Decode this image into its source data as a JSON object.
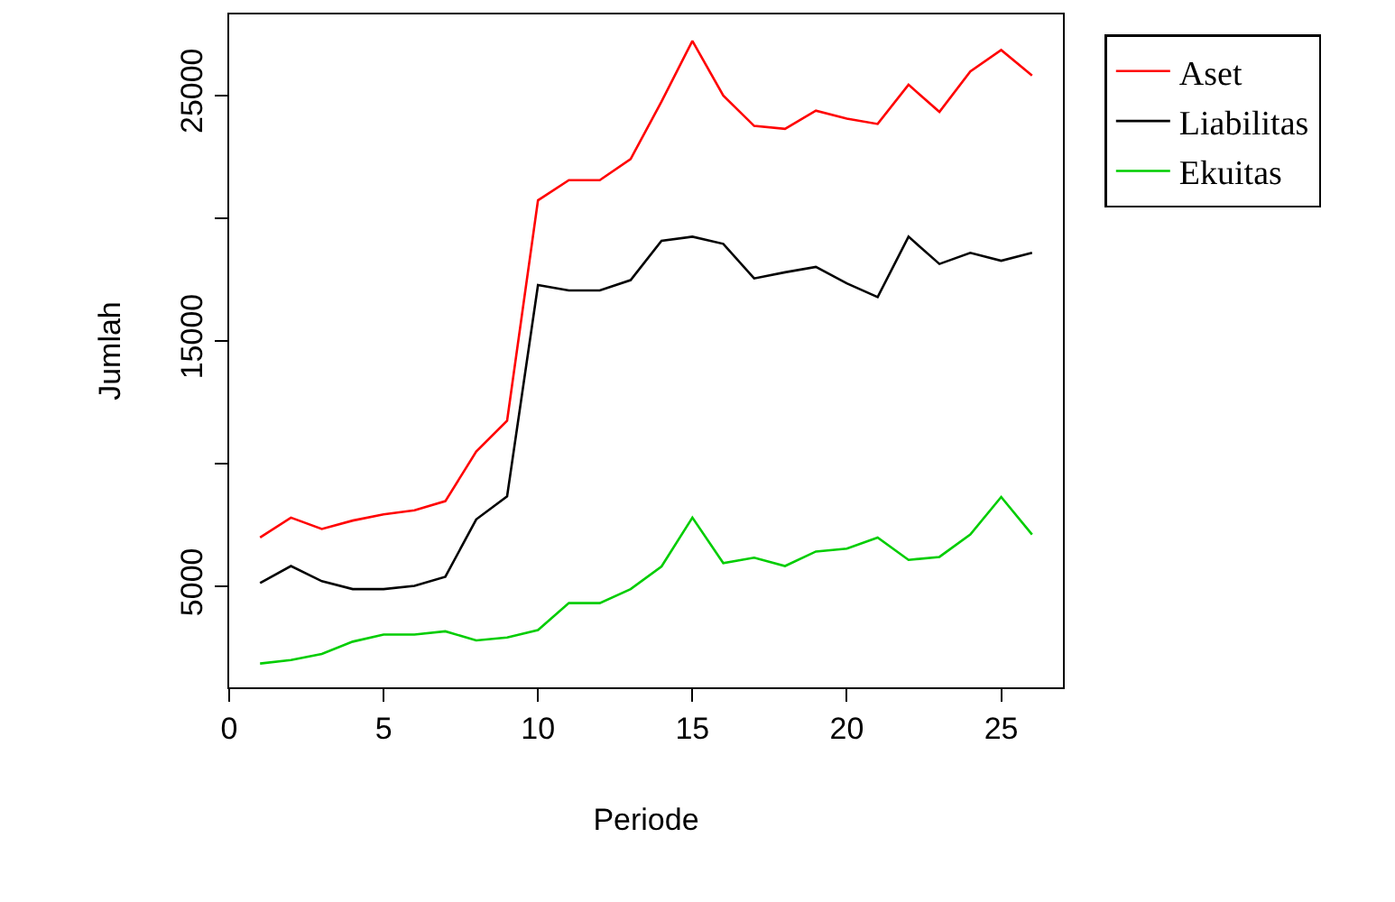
{
  "chart_data": {
    "type": "line",
    "xlabel": "Periode",
    "ylabel": "Jumlah",
    "x": [
      1,
      2,
      3,
      4,
      5,
      6,
      7,
      8,
      9,
      10,
      11,
      12,
      13,
      14,
      15,
      16,
      17,
      18,
      19,
      20,
      21,
      22,
      23,
      24,
      25,
      26
    ],
    "series": [
      {
        "name": "Aset",
        "color": "#ff0000",
        "values": [
          7000,
          7810,
          7350,
          7690,
          7940,
          8110,
          8480,
          10500,
          11760,
          20730,
          21550,
          21550,
          22410,
          24750,
          27220,
          25000,
          23760,
          23640,
          24380,
          24060,
          23840,
          25440,
          24330,
          25980,
          26850,
          25810
        ]
      },
      {
        "name": "Liabilitas",
        "color": "#000000",
        "values": [
          5150,
          5840,
          5220,
          4900,
          4900,
          5030,
          5400,
          7740,
          8680,
          17280,
          17060,
          17060,
          17480,
          19080,
          19250,
          18960,
          17550,
          17800,
          18020,
          17350,
          16790,
          19250,
          18140,
          18590,
          18270,
          18590
        ]
      },
      {
        "name": "Ekuitas",
        "color": "#00cd00",
        "values": [
          1870,
          2010,
          2260,
          2760,
          3050,
          3050,
          3180,
          2810,
          2930,
          3230,
          4330,
          4330,
          4900,
          5820,
          7810,
          5960,
          6180,
          5840,
          6430,
          6550,
          7000,
          6090,
          6210,
          7120,
          8650,
          7120
        ]
      }
    ],
    "xlim": [
      0,
      27
    ],
    "ylim": [
      900,
      28300
    ],
    "xticks": [
      0,
      5,
      10,
      15,
      20,
      25
    ],
    "yticks": [
      5000,
      {
        "value": 10000,
        "label": null
      },
      15000,
      {
        "value": 20000,
        "label": null
      },
      25000
    ],
    "legend": "right",
    "marker": "none",
    "line_style": "solid"
  }
}
